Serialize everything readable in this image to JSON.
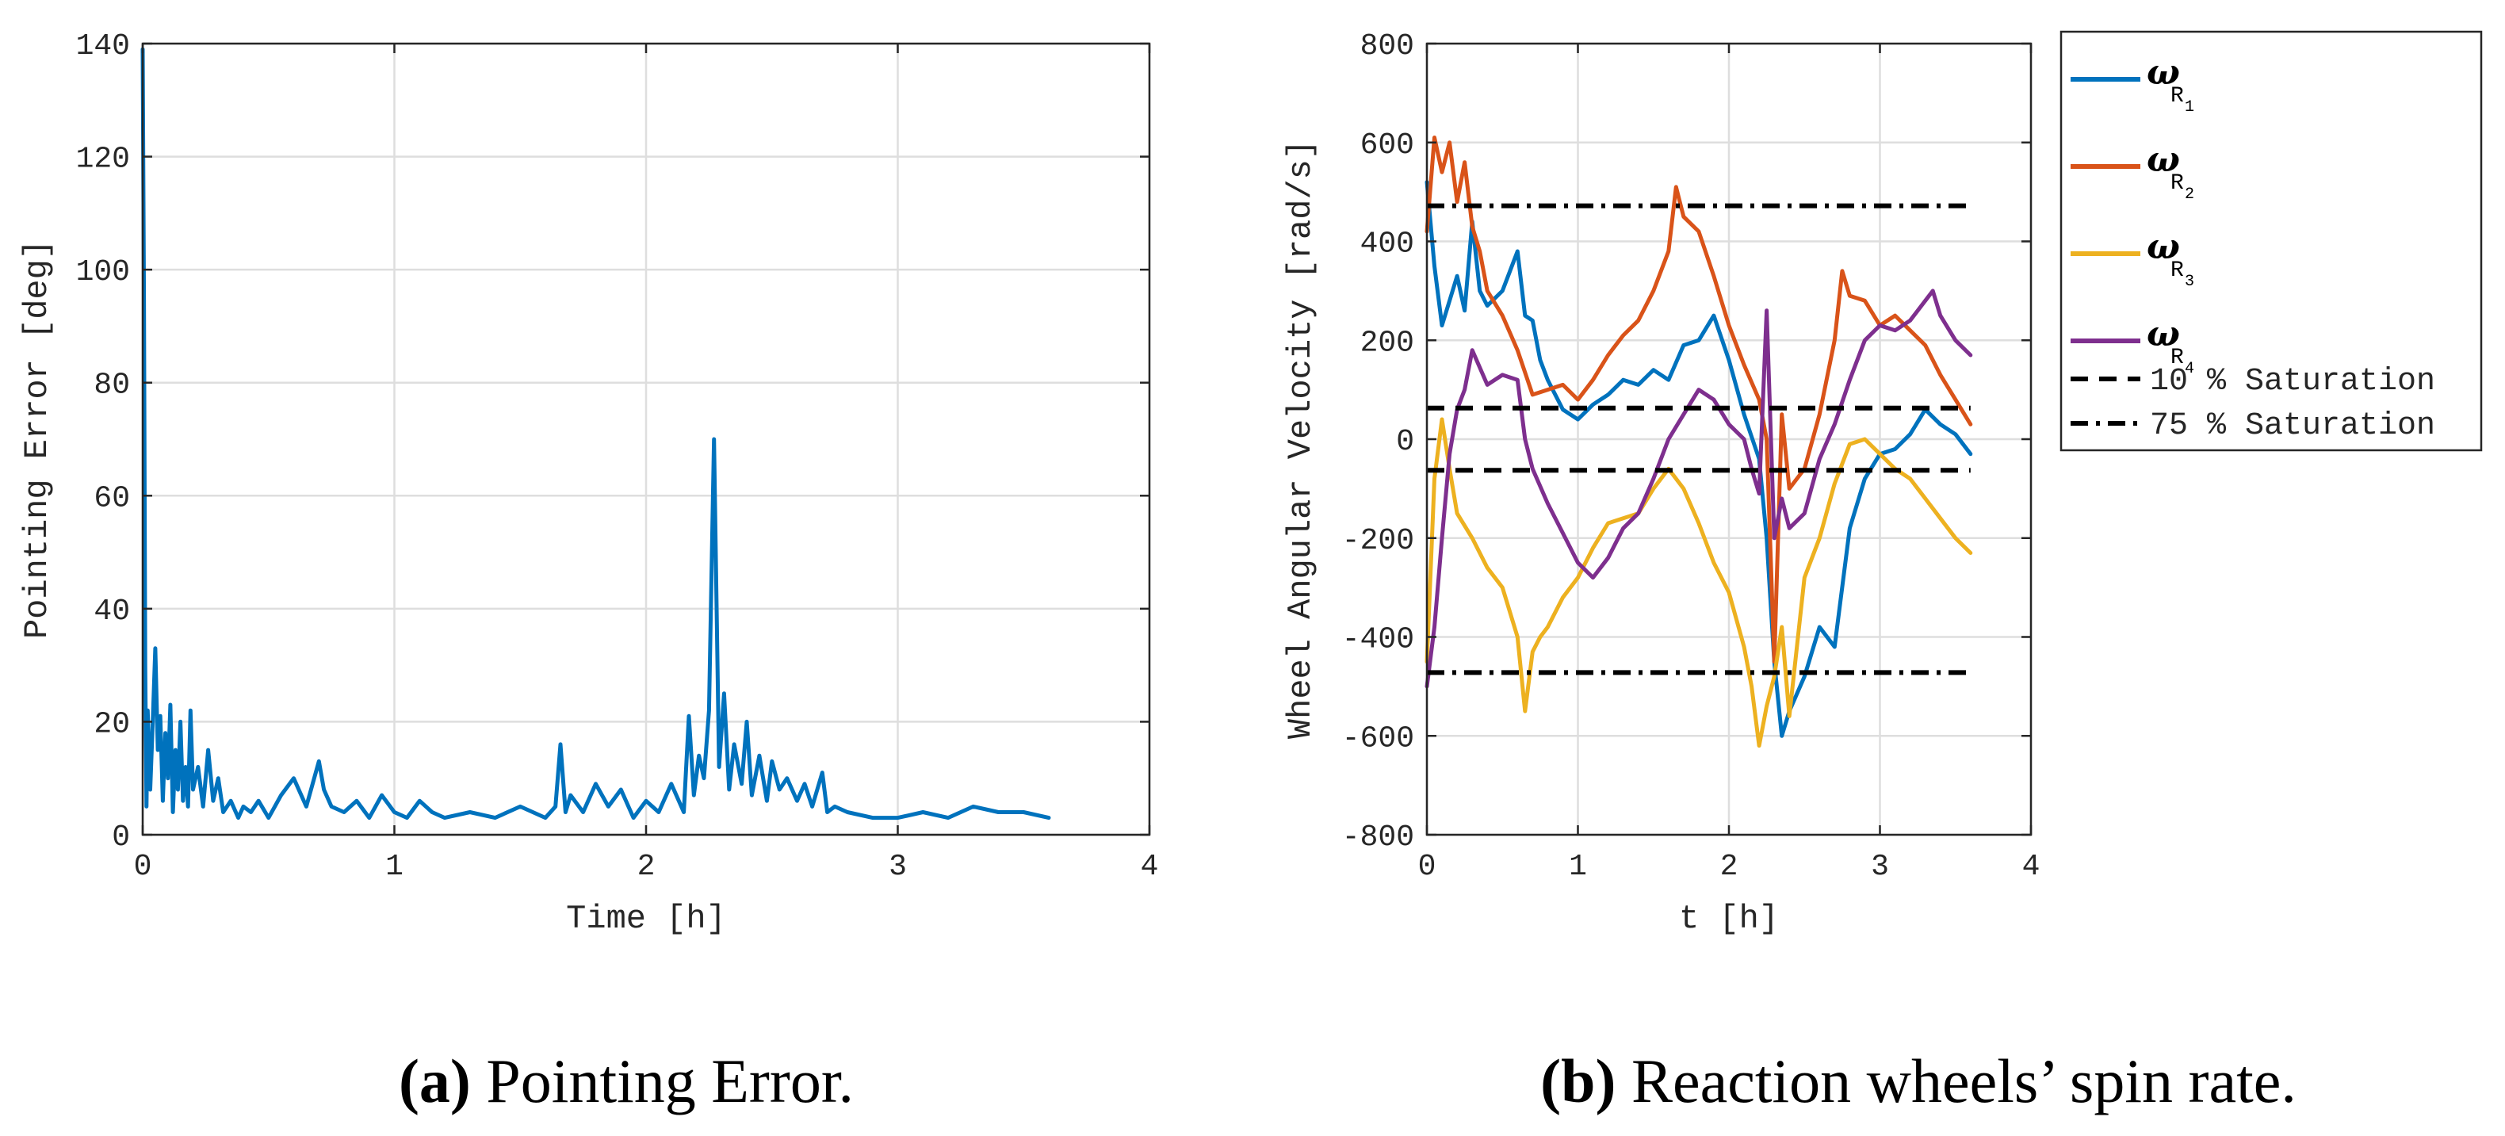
{
  "chart_data": [
    {
      "type": "line",
      "title": "",
      "xlabel": "Time [h]",
      "ylabel": "Pointing Error [deg]",
      "xlim": [
        0,
        4
      ],
      "ylim": [
        0,
        140
      ],
      "xticks": [
        "0",
        "1",
        "2",
        "3",
        "4"
      ],
      "yticks": [
        "0",
        "20",
        "40",
        "60",
        "80",
        "100",
        "120",
        "140"
      ],
      "grid": true,
      "caption_letter": "(a)",
      "caption_text": " Pointing Error.",
      "series": [
        {
          "name": "Pointing Error",
          "color": "#0072BD",
          "x": [
            0,
            0.005,
            0.01,
            0.015,
            0.02,
            0.03,
            0.04,
            0.05,
            0.06,
            0.07,
            0.08,
            0.09,
            0.1,
            0.11,
            0.12,
            0.13,
            0.14,
            0.15,
            0.16,
            0.17,
            0.18,
            0.19,
            0.2,
            0.22,
            0.24,
            0.26,
            0.28,
            0.3,
            0.32,
            0.35,
            0.38,
            0.4,
            0.43,
            0.46,
            0.5,
            0.55,
            0.6,
            0.65,
            0.7,
            0.72,
            0.75,
            0.8,
            0.85,
            0.9,
            0.95,
            1.0,
            1.05,
            1.1,
            1.15,
            1.2,
            1.3,
            1.4,
            1.5,
            1.6,
            1.64,
            1.66,
            1.68,
            1.7,
            1.75,
            1.8,
            1.85,
            1.9,
            1.95,
            2.0,
            2.05,
            2.1,
            2.15,
            2.17,
            2.19,
            2.21,
            2.23,
            2.25,
            2.27,
            2.29,
            2.31,
            2.33,
            2.35,
            2.38,
            2.4,
            2.42,
            2.45,
            2.48,
            2.5,
            2.53,
            2.56,
            2.6,
            2.63,
            2.66,
            2.7,
            2.72,
            2.75,
            2.8,
            2.9,
            3.0,
            3.1,
            3.2,
            3.3,
            3.4,
            3.5,
            3.6
          ],
          "y": [
            139,
            95,
            30,
            5,
            22,
            8,
            20,
            33,
            15,
            21,
            6,
            18,
            10,
            23,
            4,
            15,
            8,
            20,
            6,
            12,
            5,
            22,
            8,
            12,
            5,
            15,
            6,
            10,
            4,
            6,
            3,
            5,
            4,
            6,
            3,
            7,
            10,
            5,
            13,
            8,
            5,
            4,
            6,
            3,
            7,
            4,
            3,
            6,
            4,
            3,
            4,
            3,
            5,
            3,
            5,
            16,
            4,
            7,
            4,
            9,
            5,
            8,
            3,
            6,
            4,
            9,
            4,
            21,
            7,
            14,
            10,
            22,
            70,
            12,
            25,
            8,
            16,
            9,
            20,
            7,
            14,
            6,
            13,
            8,
            10,
            6,
            9,
            5,
            11,
            4,
            5,
            4,
            3,
            3,
            4,
            3,
            5,
            4,
            4,
            3
          ]
        }
      ]
    },
    {
      "type": "line",
      "title": "",
      "xlabel": "t [h]",
      "ylabel": "Wheel Angular Velocity [rad/s]",
      "xlim": [
        0,
        4
      ],
      "ylim": [
        -800,
        800
      ],
      "xticks": [
        "0",
        "1",
        "2",
        "3",
        "4"
      ],
      "yticks": [
        "-800",
        "-600",
        "-400",
        "-200",
        "0",
        "200",
        "400",
        "600",
        "800"
      ],
      "grid": true,
      "legend_position": "outside-right",
      "caption_letter": "(b)",
      "caption_text": " Reaction wheels’ spin rate.",
      "series": [
        {
          "name": "ω",
          "sub1": "R",
          "sub2": "1",
          "color": "#0072BD",
          "x": [
            0,
            0.05,
            0.1,
            0.15,
            0.2,
            0.25,
            0.3,
            0.35,
            0.4,
            0.5,
            0.6,
            0.65,
            0.7,
            0.75,
            0.8,
            0.9,
            1.0,
            1.1,
            1.2,
            1.3,
            1.4,
            1.5,
            1.6,
            1.7,
            1.8,
            1.9,
            2.0,
            2.1,
            2.2,
            2.25,
            2.3,
            2.35,
            2.4,
            2.5,
            2.6,
            2.7,
            2.8,
            2.9,
            3.0,
            3.1,
            3.2,
            3.3,
            3.4,
            3.5,
            3.6
          ],
          "y": [
            520,
            350,
            230,
            280,
            330,
            260,
            440,
            300,
            270,
            300,
            380,
            250,
            240,
            160,
            120,
            60,
            40,
            70,
            90,
            120,
            110,
            140,
            120,
            190,
            200,
            250,
            160,
            50,
            -40,
            -200,
            -450,
            -600,
            -550,
            -480,
            -380,
            -420,
            -180,
            -80,
            -30,
            -20,
            10,
            60,
            30,
            10,
            -30
          ]
        },
        {
          "name": "ω",
          "sub1": "R",
          "sub2": "2",
          "color": "#D95319",
          "x": [
            0,
            0.05,
            0.1,
            0.15,
            0.2,
            0.25,
            0.3,
            0.35,
            0.4,
            0.5,
            0.6,
            0.7,
            0.8,
            0.9,
            1.0,
            1.1,
            1.2,
            1.3,
            1.4,
            1.5,
            1.6,
            1.65,
            1.7,
            1.8,
            1.9,
            2.0,
            2.1,
            2.2,
            2.25,
            2.3,
            2.35,
            2.4,
            2.5,
            2.6,
            2.7,
            2.75,
            2.8,
            2.9,
            3.0,
            3.1,
            3.2,
            3.3,
            3.4,
            3.5,
            3.6
          ],
          "y": [
            420,
            610,
            540,
            600,
            480,
            560,
            430,
            380,
            300,
            250,
            180,
            90,
            100,
            110,
            80,
            120,
            170,
            210,
            240,
            300,
            380,
            510,
            450,
            420,
            330,
            230,
            150,
            80,
            0,
            -450,
            50,
            -100,
            -60,
            50,
            200,
            340,
            290,
            280,
            230,
            250,
            220,
            190,
            130,
            80,
            30
          ]
        },
        {
          "name": "ω",
          "sub1": "R",
          "sub2": "3",
          "color": "#EDB120",
          "x": [
            0,
            0.05,
            0.1,
            0.15,
            0.2,
            0.3,
            0.4,
            0.5,
            0.6,
            0.65,
            0.7,
            0.75,
            0.8,
            0.9,
            1.0,
            1.1,
            1.2,
            1.3,
            1.4,
            1.5,
            1.6,
            1.7,
            1.8,
            1.9,
            2.0,
            2.1,
            2.15,
            2.2,
            2.25,
            2.3,
            2.35,
            2.4,
            2.5,
            2.6,
            2.7,
            2.8,
            2.9,
            3.0,
            3.1,
            3.2,
            3.3,
            3.4,
            3.5,
            3.6
          ],
          "y": [
            -450,
            -80,
            40,
            -60,
            -150,
            -200,
            -260,
            -300,
            -400,
            -550,
            -430,
            -400,
            -380,
            -320,
            -280,
            -220,
            -170,
            -160,
            -150,
            -100,
            -60,
            -100,
            -170,
            -250,
            -310,
            -420,
            -500,
            -620,
            -540,
            -480,
            -380,
            -560,
            -280,
            -200,
            -90,
            -10,
            0,
            -30,
            -60,
            -80,
            -120,
            -160,
            -200,
            -230
          ]
        },
        {
          "name": "ω",
          "sub1": "R",
          "sub2": "4",
          "color": "#7E2F8E",
          "x": [
            0,
            0.05,
            0.1,
            0.15,
            0.2,
            0.25,
            0.3,
            0.4,
            0.5,
            0.6,
            0.65,
            0.7,
            0.8,
            0.9,
            1.0,
            1.1,
            1.2,
            1.3,
            1.4,
            1.5,
            1.6,
            1.7,
            1.8,
            1.9,
            2.0,
            2.1,
            2.15,
            2.2,
            2.25,
            2.3,
            2.35,
            2.4,
            2.5,
            2.6,
            2.7,
            2.8,
            2.9,
            3.0,
            3.1,
            3.2,
            3.3,
            3.35,
            3.4,
            3.5,
            3.6
          ],
          "y": [
            -500,
            -380,
            -200,
            -30,
            60,
            100,
            180,
            110,
            130,
            120,
            0,
            -60,
            -130,
            -190,
            -250,
            -280,
            -240,
            -180,
            -150,
            -80,
            0,
            50,
            100,
            80,
            30,
            0,
            -60,
            -110,
            260,
            -200,
            -120,
            -180,
            -150,
            -40,
            30,
            120,
            200,
            230,
            220,
            240,
            280,
            300,
            250,
            200,
            170
          ]
        },
        {
          "name": "10 % Saturation",
          "color": "#000000",
          "dash": "dashed",
          "x": [
            0,
            3.6
          ],
          "y": [
            63,
            63
          ]
        },
        {
          "name": "10 % Saturation (lower)",
          "color": "#000000",
          "dash": "dashed",
          "x": [
            0,
            3.6
          ],
          "y": [
            -63,
            -63
          ]
        },
        {
          "name": "75 % Saturation",
          "color": "#000000",
          "dash": "dashdot",
          "x": [
            0,
            3.6
          ],
          "y": [
            472,
            472
          ]
        },
        {
          "name": "75 % Saturation (lower)",
          "color": "#000000",
          "dash": "dashdot",
          "x": [
            0,
            3.6
          ],
          "y": [
            -472,
            -472
          ]
        }
      ],
      "legend": [
        {
          "label": "ω",
          "sub1": "R",
          "sub2": "1",
          "color": "#0072BD",
          "style": "solid"
        },
        {
          "label": "ω",
          "sub1": "R",
          "sub2": "2",
          "color": "#D95319",
          "style": "solid"
        },
        {
          "label": "ω",
          "sub1": "R",
          "sub2": "3",
          "color": "#EDB120",
          "style": "solid"
        },
        {
          "label": "ω",
          "sub1": "R",
          "sub2": "4",
          "color": "#7E2F8E",
          "style": "solid"
        },
        {
          "label": "10 % Saturation",
          "color": "#000000",
          "style": "dashed"
        },
        {
          "label": "75 % Saturation",
          "color": "#000000",
          "style": "dashdot"
        }
      ]
    }
  ]
}
